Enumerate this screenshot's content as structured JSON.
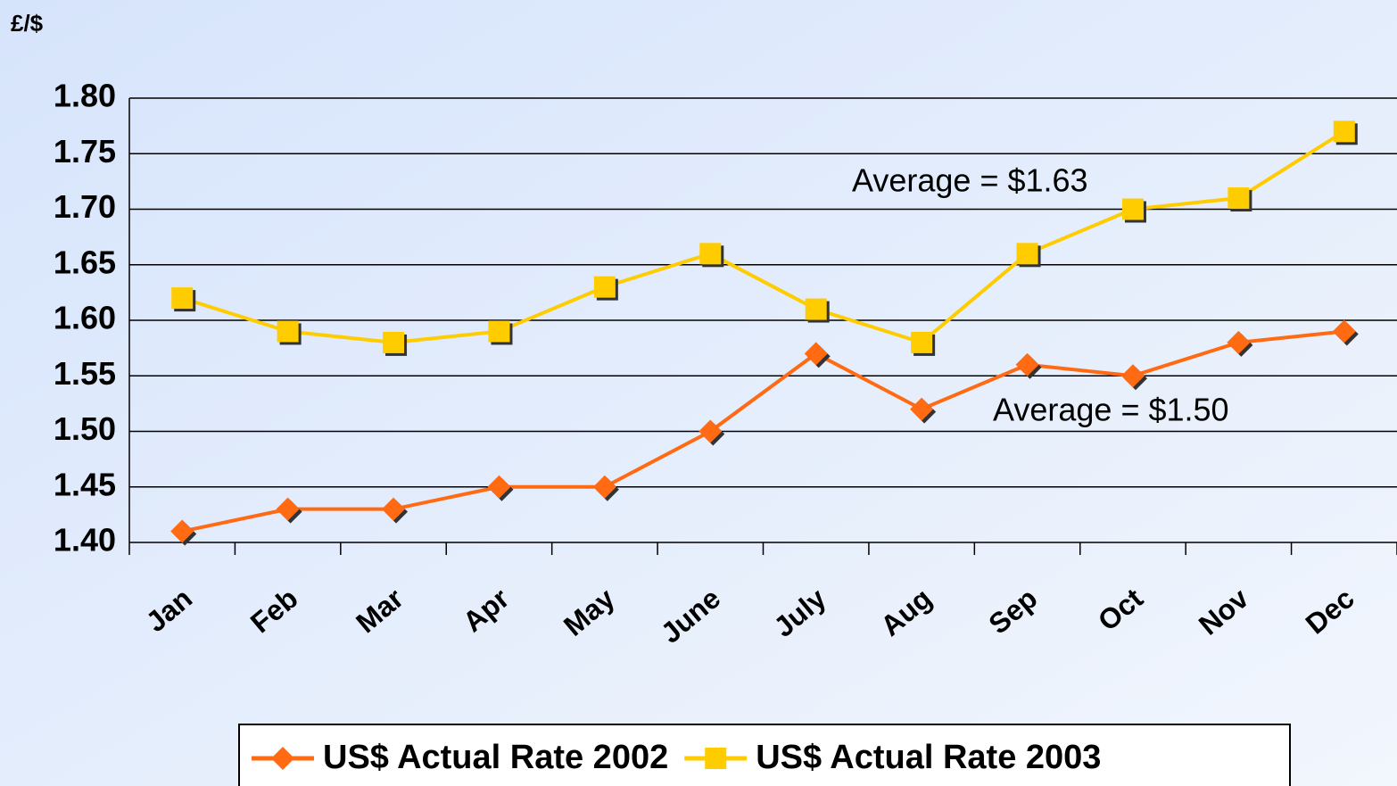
{
  "chart_data": {
    "type": "line",
    "y_label": "£/$",
    "categories": [
      "Jan",
      "Feb",
      "Mar",
      "Apr",
      "May",
      "June",
      "July",
      "Aug",
      "Sep",
      "Oct",
      "Nov",
      "Dec"
    ],
    "series": [
      {
        "name": "US$ Actual Rate 2002",
        "color": "#ff6a13",
        "marker": "diamond",
        "values": [
          1.41,
          1.43,
          1.43,
          1.45,
          1.45,
          1.5,
          1.57,
          1.52,
          1.56,
          1.55,
          1.58,
          1.59
        ]
      },
      {
        "name": "US$ Actual Rate 2003",
        "color": "#ffcc00",
        "marker": "square",
        "values": [
          1.62,
          1.59,
          1.58,
          1.59,
          1.63,
          1.66,
          1.61,
          1.58,
          1.66,
          1.7,
          1.71,
          1.77
        ]
      }
    ],
    "annotations": [
      "Average = $1.63",
      "Average = $1.50"
    ],
    "ylim": [
      1.4,
      1.8
    ],
    "yticks": [
      {
        "value": 1.4,
        "label": "1.40"
      },
      {
        "value": 1.45,
        "label": "1.45"
      },
      {
        "value": 1.5,
        "label": "1.50"
      },
      {
        "value": 1.55,
        "label": "1.55"
      },
      {
        "value": 1.6,
        "label": "1.60"
      },
      {
        "value": 1.65,
        "label": "1.65"
      },
      {
        "value": 1.7,
        "label": "1.70"
      },
      {
        "value": 1.75,
        "label": "1.75"
      },
      {
        "value": 1.8,
        "label": "1.80"
      }
    ],
    "grid": true,
    "legend": "bottom"
  }
}
